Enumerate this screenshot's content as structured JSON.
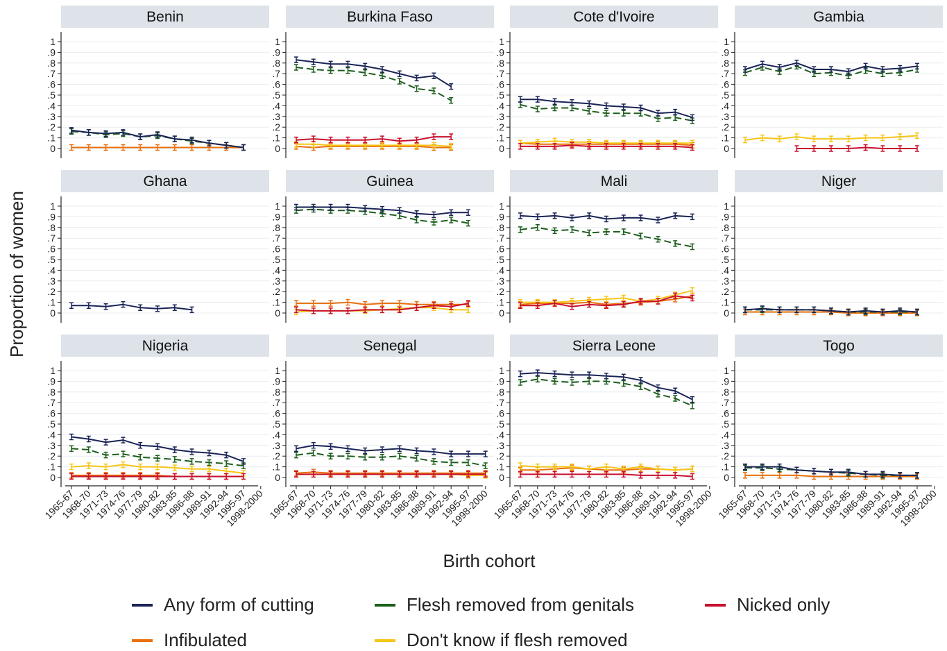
{
  "chart_data": {
    "type": "line",
    "ylabel": "Proportion of women",
    "xlabel": "Birth cohort",
    "yticks": [
      "0",
      ".1",
      ".2",
      ".3",
      ".4",
      ".5",
      ".6",
      ".7",
      ".8",
      ".9",
      "1"
    ],
    "ylim": [
      0,
      1
    ],
    "categories": [
      "1965-67",
      "1968-70",
      "1971-73",
      "1974-76",
      "1977-79",
      "1980-82",
      "1983-85",
      "1986-88",
      "1989-91",
      "1992-94",
      "1995-97",
      "1998-2000"
    ],
    "grid": true,
    "legend_position": "bottom",
    "legend": [
      {
        "key": "any",
        "label": "Any form of cutting",
        "color": "#1a2456"
      },
      {
        "key": "flesh",
        "label": "Flesh removed from genitals",
        "color": "#1d5e1d"
      },
      {
        "key": "nicked",
        "label": "Nicked only",
        "color": "#c8102e"
      },
      {
        "key": "infib",
        "label": "Infibulated",
        "color": "#e8700e"
      },
      {
        "key": "dk",
        "label": "Don't know if flesh removed",
        "color": "#f5c518"
      }
    ],
    "panels": [
      {
        "title": "Benin",
        "series": {
          "any": [
            0.17,
            0.15,
            0.14,
            0.15,
            0.11,
            0.13,
            0.09,
            0.08,
            0.05,
            0.03,
            0.01
          ],
          "flesh": [
            0.16,
            0.15,
            0.13,
            0.14,
            0.11,
            0.12,
            0.09,
            0.07,
            0.05,
            0.03,
            0.01
          ],
          "infib": [
            0.01,
            0.01,
            0.01,
            0.01,
            0.01,
            0.01,
            0.01,
            0.01,
            0.01,
            0.01,
            0.01
          ]
        }
      },
      {
        "title": "Burkina Faso",
        "series": {
          "any": [
            0.83,
            0.81,
            0.79,
            0.79,
            0.77,
            0.74,
            0.7,
            0.66,
            0.68,
            0.58
          ],
          "flesh": [
            0.76,
            0.74,
            0.73,
            0.73,
            0.71,
            0.68,
            0.63,
            0.56,
            0.54,
            0.45
          ],
          "nicked": [
            0.08,
            0.09,
            0.08,
            0.08,
            0.08,
            0.09,
            0.07,
            0.08,
            0.11,
            0.11
          ],
          "dk": [
            0.04,
            0.04,
            0.03,
            0.03,
            0.03,
            0.03,
            0.03,
            0.03,
            0.03,
            0.02
          ],
          "infib": [
            0.02,
            0.01,
            0.02,
            0.02,
            0.02,
            0.02,
            0.02,
            0.02,
            0.01,
            0.01
          ]
        }
      },
      {
        "title": "Cote d'Ivoire",
        "series": {
          "any": [
            0.46,
            0.46,
            0.44,
            0.43,
            0.42,
            0.4,
            0.39,
            0.38,
            0.33,
            0.34,
            0.29
          ],
          "flesh": [
            0.41,
            0.37,
            0.38,
            0.38,
            0.35,
            0.33,
            0.33,
            0.33,
            0.28,
            0.29,
            0.26
          ],
          "dk": [
            0.05,
            0.06,
            0.07,
            0.06,
            0.06,
            0.05,
            0.05,
            0.05,
            0.05,
            0.05,
            0.05
          ],
          "infib": [
            0.05,
            0.04,
            0.04,
            0.04,
            0.04,
            0.04,
            0.04,
            0.04,
            0.04,
            0.04,
            0.03
          ],
          "nicked": [
            0.02,
            0.02,
            0.02,
            0.03,
            0.02,
            0.02,
            0.02,
            0.02,
            0.02,
            0.02,
            0.01
          ]
        }
      },
      {
        "title": "Gambia",
        "series": {
          "any": [
            0.74,
            0.79,
            0.76,
            0.8,
            0.74,
            0.74,
            0.72,
            0.77,
            0.74,
            0.75,
            0.77
          ],
          "flesh": [
            0.71,
            0.76,
            0.72,
            0.77,
            0.7,
            0.71,
            0.68,
            0.73,
            0.7,
            0.71,
            0.74
          ],
          "dk": [
            0.08,
            0.1,
            0.09,
            0.11,
            0.09,
            0.09,
            0.09,
            0.1,
            0.1,
            0.11,
            0.12
          ],
          "nicked": [
            null,
            null,
            null,
            0.0,
            0.0,
            0.0,
            0.0,
            0.01,
            0.0,
            0.0,
            0.0
          ]
        }
      },
      {
        "title": "Ghana",
        "series": {
          "any": [
            0.07,
            0.07,
            0.06,
            0.08,
            0.05,
            0.04,
            0.05,
            0.03
          ]
        }
      },
      {
        "title": "Guinea",
        "series": {
          "any": [
            0.99,
            0.99,
            0.99,
            0.99,
            0.98,
            0.97,
            0.96,
            0.93,
            0.92,
            0.94,
            0.94
          ],
          "flesh": [
            0.96,
            0.97,
            0.96,
            0.96,
            0.95,
            0.93,
            0.91,
            0.87,
            0.85,
            0.87,
            0.84
          ],
          "infib": [
            0.09,
            0.09,
            0.09,
            0.1,
            0.08,
            0.09,
            0.09,
            0.08,
            0.08,
            0.08,
            0.08
          ],
          "nicked": [
            0.03,
            0.02,
            0.02,
            0.02,
            0.03,
            0.03,
            0.03,
            0.05,
            0.07,
            0.06,
            0.09
          ],
          "dk": [
            0.01,
            0.02,
            0.02,
            0.02,
            0.02,
            0.03,
            0.04,
            0.05,
            0.05,
            0.03,
            0.03
          ]
        }
      },
      {
        "title": "Mali",
        "series": {
          "any": [
            0.91,
            0.9,
            0.91,
            0.89,
            0.91,
            0.88,
            0.89,
            0.89,
            0.87,
            0.91,
            0.9
          ],
          "flesh": [
            0.78,
            0.8,
            0.77,
            0.78,
            0.75,
            0.76,
            0.76,
            0.72,
            0.69,
            0.65,
            0.62
          ],
          "dk": [
            0.1,
            0.1,
            0.1,
            0.11,
            0.12,
            0.13,
            0.14,
            0.11,
            0.13,
            0.17,
            0.21
          ],
          "infib": [
            0.08,
            0.09,
            0.09,
            0.09,
            0.1,
            0.08,
            0.09,
            0.1,
            0.11,
            0.13,
            0.16
          ],
          "nicked": [
            0.07,
            0.07,
            0.09,
            0.06,
            0.08,
            0.07,
            0.08,
            0.11,
            0.11,
            0.16,
            0.14
          ]
        }
      },
      {
        "title": "Niger",
        "series": {
          "any": [
            0.03,
            0.04,
            0.03,
            0.03,
            0.03,
            0.02,
            0.01,
            0.02,
            0.01,
            0.02,
            0.01
          ],
          "flesh": [
            0.03,
            0.03,
            0.03,
            0.03,
            0.03,
            0.02,
            0.01,
            0.01,
            0.01,
            0.01,
            0.01
          ],
          "infib": [
            0.01,
            0.01,
            0.01,
            0.01,
            0.01,
            0.01,
            0.0,
            0.0,
            0.0,
            0.0,
            0.0
          ]
        }
      },
      {
        "title": "Nigeria",
        "series": {
          "any": [
            0.38,
            0.36,
            0.33,
            0.35,
            0.3,
            0.29,
            0.26,
            0.24,
            0.23,
            0.21,
            0.15
          ],
          "flesh": [
            0.27,
            0.26,
            0.21,
            0.22,
            0.19,
            0.18,
            0.17,
            0.15,
            0.14,
            0.13,
            0.11
          ],
          "dk": [
            0.1,
            0.11,
            0.1,
            0.12,
            0.1,
            0.1,
            0.09,
            0.08,
            0.08,
            0.06,
            0.04
          ],
          "infib": [
            0.02,
            0.02,
            0.02,
            0.02,
            0.02,
            0.02,
            0.01,
            0.01,
            0.01,
            0.01,
            0.01
          ],
          "nicked": [
            0.01,
            0.01,
            0.01,
            0.01,
            0.01,
            0.01,
            0.01,
            0.01,
            0.01,
            0.01,
            0.01
          ]
        }
      },
      {
        "title": "Senegal",
        "series": {
          "any": [
            0.27,
            0.3,
            0.29,
            0.27,
            0.25,
            0.26,
            0.27,
            0.25,
            0.24,
            0.22,
            0.22,
            0.22
          ],
          "flesh": [
            0.21,
            0.23,
            0.2,
            0.2,
            0.19,
            0.19,
            0.2,
            0.18,
            0.15,
            0.14,
            0.14,
            0.11
          ],
          "infib": [
            0.04,
            0.05,
            0.04,
            0.04,
            0.04,
            0.04,
            0.04,
            0.04,
            0.04,
            0.04,
            0.04,
            0.04
          ],
          "dk": [
            0.03,
            0.03,
            0.03,
            0.03,
            0.03,
            0.03,
            0.03,
            0.03,
            0.03,
            0.03,
            0.02,
            0.02
          ],
          "nicked": [
            0.03,
            0.03,
            0.03,
            0.03,
            0.03,
            0.03,
            0.03,
            0.03,
            0.03,
            0.03,
            0.03,
            0.03
          ]
        }
      },
      {
        "title": "Sierra Leone",
        "series": {
          "any": [
            0.97,
            0.98,
            0.97,
            0.96,
            0.96,
            0.95,
            0.94,
            0.91,
            0.84,
            0.81,
            0.73
          ],
          "flesh": [
            0.89,
            0.92,
            0.9,
            0.89,
            0.9,
            0.9,
            0.88,
            0.85,
            0.78,
            0.74,
            0.67
          ],
          "dk": [
            0.11,
            0.1,
            0.1,
            0.1,
            0.08,
            0.1,
            0.08,
            0.1,
            0.08,
            0.07,
            0.08
          ],
          "infib": [
            0.07,
            0.07,
            0.08,
            0.09,
            0.08,
            0.07,
            0.07,
            0.08,
            0.08,
            0.07,
            0.08
          ],
          "nicked": [
            0.03,
            0.03,
            0.03,
            0.03,
            0.03,
            0.03,
            0.03,
            0.02,
            0.02,
            0.02,
            0.01
          ]
        }
      },
      {
        "title": "Togo",
        "series": {
          "any": [
            0.1,
            0.1,
            0.1,
            0.07,
            0.06,
            0.05,
            0.05,
            0.03,
            0.03,
            0.02,
            0.02
          ],
          "flesh": [
            0.09,
            0.09,
            0.08,
            0.07,
            0.06,
            0.05,
            0.04,
            0.03,
            0.02,
            0.02,
            0.02
          ],
          "infib": [
            0.02,
            0.02,
            0.02,
            0.02,
            0.01,
            0.01,
            0.01,
            0.01,
            0.01,
            0.01,
            0.01
          ]
        }
      }
    ]
  }
}
